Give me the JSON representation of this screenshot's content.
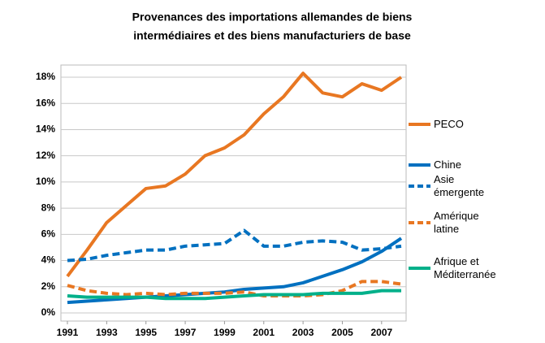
{
  "chart_data": {
    "type": "line",
    "title": [
      "Provenances des importations allemandes de biens",
      "intermédiaires et des biens manufacturiers de base"
    ],
    "x": [
      1991,
      1992,
      1993,
      1994,
      1995,
      1996,
      1997,
      1998,
      1999,
      2000,
      2001,
      2002,
      2003,
      2004,
      2005,
      2006,
      2007,
      2008
    ],
    "xlim": [
      1991,
      2008
    ],
    "xticks": [
      1991,
      1993,
      1995,
      1997,
      1999,
      2001,
      2003,
      2005,
      2007
    ],
    "ylim": [
      0,
      18
    ],
    "yticks": [
      {
        "value": 0,
        "label": "0%"
      },
      {
        "value": 2,
        "label": "2%"
      },
      {
        "value": 4,
        "label": "4%"
      },
      {
        "value": 6,
        "label": "6%"
      },
      {
        "value": 8,
        "label": "8%"
      },
      {
        "value": 10,
        "label": "10%"
      },
      {
        "value": 12,
        "label": "12%"
      },
      {
        "value": 14,
        "label": "14%"
      },
      {
        "value": 16,
        "label": "16%"
      },
      {
        "value": 18,
        "label": "18%"
      }
    ],
    "grid": true,
    "legend": "right",
    "series": [
      {
        "name": "PECO",
        "color": "#e87722",
        "dashed": false,
        "values": [
          2.8,
          4.8,
          6.9,
          8.2,
          9.5,
          9.7,
          10.6,
          12.0,
          12.6,
          13.6,
          15.2,
          16.5,
          18.3,
          16.8,
          16.5,
          17.5,
          17.0,
          18.0
        ]
      },
      {
        "name": "Chine",
        "color": "#0070c0",
        "dashed": false,
        "values": [
          0.8,
          0.9,
          1.0,
          1.1,
          1.2,
          1.3,
          1.4,
          1.5,
          1.6,
          1.8,
          1.9,
          2.0,
          2.3,
          2.8,
          3.3,
          3.9,
          4.7,
          5.7
        ]
      },
      {
        "name": "Asie émergente",
        "color": "#0070c0",
        "dashed": true,
        "values": [
          4.0,
          4.1,
          4.4,
          4.6,
          4.8,
          4.8,
          5.1,
          5.2,
          5.3,
          6.3,
          5.1,
          5.1,
          5.4,
          5.5,
          5.4,
          4.8,
          4.9,
          5.1
        ]
      },
      {
        "name": "Amérique latine",
        "color": "#e87722",
        "dashed": true,
        "values": [
          2.1,
          1.7,
          1.5,
          1.4,
          1.5,
          1.4,
          1.5,
          1.5,
          1.5,
          1.6,
          1.3,
          1.3,
          1.3,
          1.4,
          1.7,
          2.4,
          2.4,
          2.2
        ]
      },
      {
        "name": "Afrique et Méditerranée",
        "color": "#00b08a",
        "dashed": false,
        "values": [
          1.3,
          1.2,
          1.2,
          1.2,
          1.2,
          1.1,
          1.1,
          1.1,
          1.2,
          1.3,
          1.4,
          1.4,
          1.4,
          1.5,
          1.5,
          1.5,
          1.7,
          1.7
        ]
      }
    ]
  }
}
